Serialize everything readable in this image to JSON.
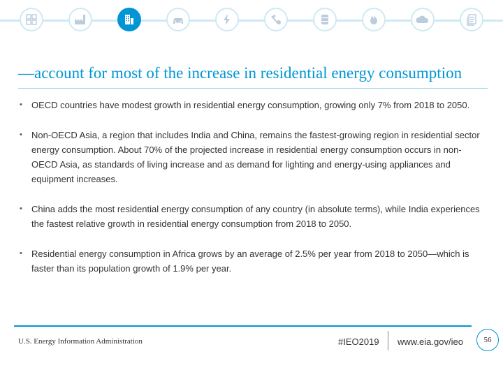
{
  "nav_icons": [
    {
      "name": "summary-icon",
      "active": false
    },
    {
      "name": "industrial-icon",
      "active": false
    },
    {
      "name": "buildings-icon",
      "active": true
    },
    {
      "name": "transportation-icon",
      "active": false
    },
    {
      "name": "electricity-icon",
      "active": false
    },
    {
      "name": "coal-icon",
      "active": false
    },
    {
      "name": "petroleum-icon",
      "active": false
    },
    {
      "name": "natural-gas-icon",
      "active": false
    },
    {
      "name": "co2-icon",
      "active": false
    },
    {
      "name": "documents-icon",
      "active": false
    }
  ],
  "colors": {
    "accent": "#0096d6",
    "light_accent": "#cfe9f4",
    "text": "#333333"
  },
  "slide": {
    "title": "—account for most of the increase in residential energy consumption",
    "bullets": [
      {
        "text": "OECD countries have modest growth in residential energy consumption, growing only 7% from 2018 to 2050."
      },
      {
        "text": "Non-OECD Asia, a region that includes India and China, remains the fastest-growing region in residential sector energy consumption. About 70% of the projected increase in residential energy consumption occurs in non-OECD Asia, as standards of living increase and as demand for lighting and energy-using appliances and equipment increases."
      },
      {
        "text": "China adds the most residential energy consumption of any country (in absolute terms), while India experiences the fastest relative growth in residential energy consumption from 2018 to 2050."
      },
      {
        "text": "Residential energy consumption in Africa grows by an average of 2.5% per year from 2018 to 2050—which is faster than its population growth of 1.9% per year."
      }
    ]
  },
  "footer": {
    "source": "U.S. Energy Information Administration",
    "hashtag": "#IEO2019",
    "url": "www.eia.gov/ieo",
    "page_number": "56"
  }
}
